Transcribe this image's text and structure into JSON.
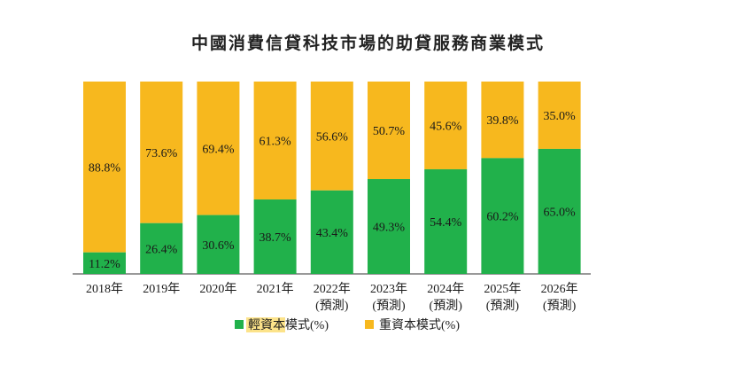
{
  "colors": {
    "light_asset": "#21B14B",
    "heavy_asset": "#F7B81E",
    "legend_highlight": "#FCE38A"
  },
  "chart_data": {
    "type": "bar",
    "stacked": true,
    "percent_stacked": true,
    "title": "中國消費信貸科技市場的助貸服務商業模式",
    "categories": [
      "2018年",
      "2019年",
      "2020年",
      "2021年",
      "2022年(預測)",
      "2023年(預測)",
      "2024年(預測)",
      "2025年(預測)",
      "2026年(預測)"
    ],
    "category_lines": [
      [
        "2018年"
      ],
      [
        "2019年"
      ],
      [
        "2020年"
      ],
      [
        "2021年"
      ],
      [
        "2022年",
        "(預測)"
      ],
      [
        "2023年",
        "(預測)"
      ],
      [
        "2024年",
        "(預測)"
      ],
      [
        "2025年",
        "(預測)"
      ],
      [
        "2026年",
        "(預測)"
      ]
    ],
    "series": [
      {
        "name": "輕資本模式(%)",
        "color": "#21B14B",
        "values": [
          11.2,
          26.4,
          30.6,
          38.7,
          43.4,
          49.3,
          54.4,
          60.2,
          65.0
        ],
        "labels": [
          "11.2%",
          "26.4%",
          "30.6%",
          "38.7%",
          "43.4%",
          "49.3%",
          "54.4%",
          "60.2%",
          "65.0%"
        ]
      },
      {
        "name": "重資本模式(%)",
        "color": "#F7B81E",
        "values": [
          88.8,
          73.6,
          69.4,
          61.3,
          56.6,
          50.7,
          45.6,
          39.8,
          35.0
        ],
        "labels": [
          "88.8%",
          "73.6%",
          "69.4%",
          "61.3%",
          "56.6%",
          "50.7%",
          "45.6%",
          "39.8%",
          "35.0%"
        ]
      }
    ],
    "ylim": [
      0,
      100
    ],
    "grid": false,
    "legend_position": "bottom"
  }
}
